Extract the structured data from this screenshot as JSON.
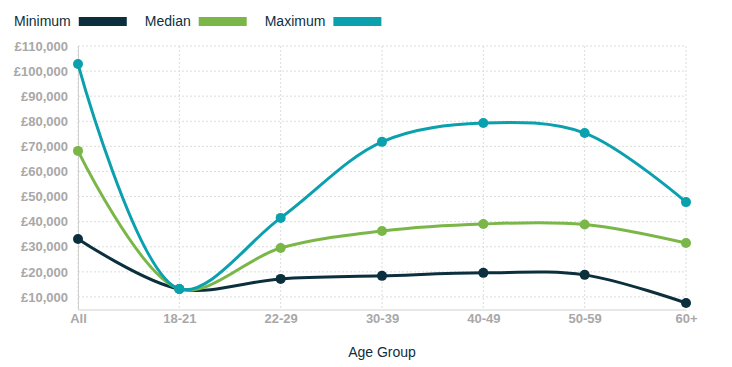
{
  "chart_data": {
    "type": "line",
    "x_label": "Age Group",
    "categories": [
      "All",
      "18-21",
      "22-29",
      "30-39",
      "40-49",
      "50-59",
      "60+"
    ],
    "series": [
      {
        "name": "Minimum",
        "color": "#0c2f3e",
        "values": [
          33100,
          13200,
          17200,
          18400,
          19600,
          18800,
          7600
        ]
      },
      {
        "name": "Median",
        "color": "#7ab648",
        "values": [
          68200,
          13200,
          29500,
          36300,
          39100,
          38900,
          31500
        ]
      },
      {
        "name": "Maximum",
        "color": "#0aa0ad",
        "values": [
          102800,
          13200,
          41500,
          71800,
          79300,
          75300,
          47800
        ]
      }
    ],
    "ylim": [
      5000,
      110000
    ],
    "yticks": [
      {
        "value": 10000,
        "label": "£10,000"
      },
      {
        "value": 20000,
        "label": "£20,000"
      },
      {
        "value": 30000,
        "label": "£30,000"
      },
      {
        "value": 40000,
        "label": "£40,000"
      },
      {
        "value": 50000,
        "label": "£50,000"
      },
      {
        "value": 60000,
        "label": "£60,000"
      },
      {
        "value": 70000,
        "label": "£70,000"
      },
      {
        "value": 80000,
        "label": "£80,000"
      },
      {
        "value": 90000,
        "label": "£90,000"
      },
      {
        "value": 100000,
        "label": "£100,000"
      },
      {
        "value": 110000,
        "label": "£110,000"
      }
    ],
    "grid": true,
    "legend": "top-left",
    "marker": "circle",
    "line_style": "smooth"
  }
}
